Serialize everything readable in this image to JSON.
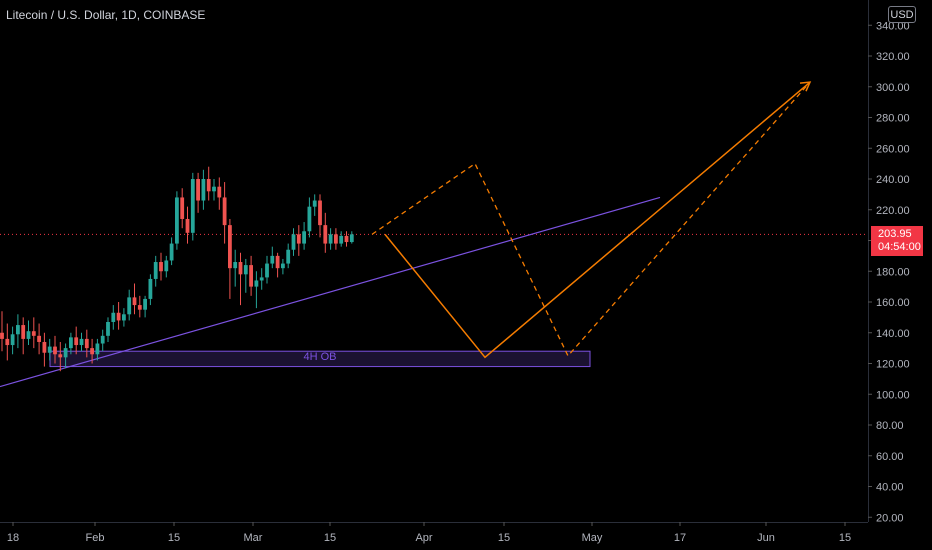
{
  "header": {
    "title": "Litecoin / U.S. Dollar, 1D, COINBASE"
  },
  "currency_button": {
    "label": "USD"
  },
  "last_price": {
    "value": "203.95",
    "countdown": "04:54:00"
  },
  "annotation": {
    "ob_label": "4H OB"
  },
  "colors": {
    "background": "#000000",
    "up_candle": "#26a69a",
    "down_candle": "#ef5350",
    "trendline": "#7b52e0",
    "projection": "#f57c00",
    "price_tag": "#f23645"
  },
  "chart_data": {
    "type": "candlestick",
    "title": "Litecoin / U.S. Dollar, 1D, COINBASE",
    "x_ticks": [
      "18",
      "Feb",
      "15",
      "Mar",
      "15",
      "Apr",
      "15",
      "May",
      "17",
      "Jun",
      "15"
    ],
    "y_ticks": [
      "340.00",
      "320.00",
      "300.00",
      "280.00",
      "260.00",
      "240.00",
      "220.00",
      "200.00",
      "180.00",
      "160.00",
      "140.00",
      "120.00",
      "100.00",
      "80.00",
      "60.00",
      "40.00",
      "20.00"
    ],
    "ylim": [
      13,
      350
    ],
    "last_price": 203.95,
    "grid": false,
    "candles": [
      {
        "o": 140,
        "h": 154,
        "c": 136,
        "l": 128
      },
      {
        "o": 136,
        "h": 146,
        "c": 132,
        "l": 122
      },
      {
        "o": 132,
        "h": 144,
        "c": 139,
        "l": 126
      },
      {
        "o": 139,
        "h": 152,
        "c": 145,
        "l": 130
      },
      {
        "o": 145,
        "h": 150,
        "c": 136,
        "l": 126
      },
      {
        "o": 136,
        "h": 148,
        "c": 141,
        "l": 132
      },
      {
        "o": 141,
        "h": 150,
        "c": 138,
        "l": 130
      },
      {
        "o": 138,
        "h": 146,
        "c": 134,
        "l": 126
      },
      {
        "o": 134,
        "h": 140,
        "c": 127,
        "l": 118
      },
      {
        "o": 127,
        "h": 136,
        "c": 131,
        "l": 122
      },
      {
        "o": 131,
        "h": 138,
        "c": 126,
        "l": 120
      },
      {
        "o": 126,
        "h": 134,
        "c": 124,
        "l": 115
      },
      {
        "o": 124,
        "h": 133,
        "c": 130,
        "l": 117
      },
      {
        "o": 130,
        "h": 140,
        "c": 137,
        "l": 126
      },
      {
        "o": 137,
        "h": 144,
        "c": 132,
        "l": 126
      },
      {
        "o": 132,
        "h": 140,
        "c": 136,
        "l": 128
      },
      {
        "o": 136,
        "h": 142,
        "c": 130,
        "l": 124
      },
      {
        "o": 130,
        "h": 136,
        "c": 126,
        "l": 120
      },
      {
        "o": 126,
        "h": 136,
        "c": 133,
        "l": 122
      },
      {
        "o": 133,
        "h": 142,
        "c": 138,
        "l": 128
      },
      {
        "o": 138,
        "h": 150,
        "c": 147,
        "l": 134
      },
      {
        "o": 147,
        "h": 158,
        "c": 153,
        "l": 142
      },
      {
        "o": 153,
        "h": 160,
        "c": 148,
        "l": 142
      },
      {
        "o": 148,
        "h": 156,
        "c": 152,
        "l": 144
      },
      {
        "o": 152,
        "h": 168,
        "c": 163,
        "l": 148
      },
      {
        "o": 163,
        "h": 172,
        "c": 158,
        "l": 152
      },
      {
        "o": 158,
        "h": 164,
        "c": 155,
        "l": 150
      },
      {
        "o": 155,
        "h": 164,
        "c": 162,
        "l": 150
      },
      {
        "o": 162,
        "h": 178,
        "c": 175,
        "l": 158
      },
      {
        "o": 175,
        "h": 190,
        "c": 186,
        "l": 170
      },
      {
        "o": 186,
        "h": 192,
        "c": 180,
        "l": 174
      },
      {
        "o": 180,
        "h": 190,
        "c": 187,
        "l": 176
      },
      {
        "o": 187,
        "h": 202,
        "c": 198,
        "l": 184
      },
      {
        "o": 198,
        "h": 232,
        "c": 228,
        "l": 194
      },
      {
        "o": 228,
        "h": 234,
        "c": 214,
        "l": 208
      },
      {
        "o": 214,
        "h": 222,
        "c": 205,
        "l": 198
      },
      {
        "o": 205,
        "h": 244,
        "c": 240,
        "l": 200
      },
      {
        "o": 240,
        "h": 244,
        "c": 226,
        "l": 218
      },
      {
        "o": 226,
        "h": 246,
        "c": 240,
        "l": 220
      },
      {
        "o": 240,
        "h": 248,
        "c": 232,
        "l": 226
      },
      {
        "o": 232,
        "h": 240,
        "c": 235,
        "l": 226
      },
      {
        "o": 235,
        "h": 241,
        "c": 228,
        "l": 220
      },
      {
        "o": 228,
        "h": 238,
        "c": 210,
        "l": 198
      },
      {
        "o": 210,
        "h": 214,
        "c": 182,
        "l": 162
      },
      {
        "o": 182,
        "h": 194,
        "c": 186,
        "l": 170
      },
      {
        "o": 186,
        "h": 192,
        "c": 178,
        "l": 158
      },
      {
        "o": 178,
        "h": 188,
        "c": 184,
        "l": 166
      },
      {
        "o": 184,
        "h": 190,
        "c": 170,
        "l": 164
      },
      {
        "o": 170,
        "h": 180,
        "c": 174,
        "l": 156
      },
      {
        "o": 174,
        "h": 182,
        "c": 176,
        "l": 168
      },
      {
        "o": 176,
        "h": 190,
        "c": 185,
        "l": 172
      },
      {
        "o": 185,
        "h": 196,
        "c": 190,
        "l": 182
      },
      {
        "o": 190,
        "h": 192,
        "c": 182,
        "l": 176
      },
      {
        "o": 182,
        "h": 188,
        "c": 185,
        "l": 178
      },
      {
        "o": 185,
        "h": 198,
        "c": 194,
        "l": 182
      },
      {
        "o": 194,
        "h": 208,
        "c": 204,
        "l": 190
      },
      {
        "o": 204,
        "h": 210,
        "c": 198,
        "l": 190
      },
      {
        "o": 198,
        "h": 212,
        "c": 206,
        "l": 194
      },
      {
        "o": 206,
        "h": 228,
        "c": 222,
        "l": 202
      },
      {
        "o": 222,
        "h": 230,
        "c": 226,
        "l": 216
      },
      {
        "o": 226,
        "h": 230,
        "c": 210,
        "l": 202
      },
      {
        "o": 210,
        "h": 218,
        "c": 198,
        "l": 192
      },
      {
        "o": 198,
        "h": 208,
        "c": 204,
        "l": 194
      },
      {
        "o": 204,
        "h": 208,
        "c": 198,
        "l": 194
      },
      {
        "o": 198,
        "h": 206,
        "c": 203,
        "l": 196
      },
      {
        "o": 203,
        "h": 206,
        "c": 199,
        "l": 196
      },
      {
        "o": 199,
        "h": 206,
        "c": 204,
        "l": 198
      }
    ],
    "trendline": [
      [
        0,
        105
      ],
      [
        660,
        228
      ]
    ],
    "ob_zone": {
      "label": "4H OB",
      "x0": 50,
      "x1": 590,
      "y_low": 118,
      "y_high": 128
    },
    "projection_solid": [
      [
        385,
        204
      ],
      [
        485,
        124
      ],
      [
        810,
        303
      ]
    ],
    "projection_dashed": [
      [
        372,
        204
      ],
      [
        475,
        250
      ],
      [
        568,
        125
      ],
      [
        810,
        303
      ]
    ]
  }
}
